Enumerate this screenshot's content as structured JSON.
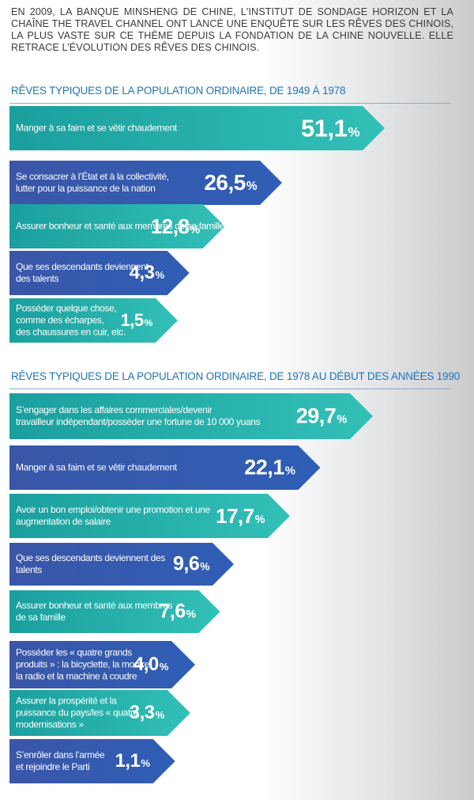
{
  "intro": "En 2009, la banque Minsheng de Chine, l'Institut de sondage Horizon et la chaîne The Travel Channel ont lancé une enquête sur les rêves des Chinois, la plus vaste sur ce thème depuis la fondation de la Chine nouvelle. Elle retrace l’évolution des rêves des Chinois.",
  "colors": {
    "teal": "#25b0aa",
    "blue": "#3458ad",
    "title_blue": "#1f73b7"
  },
  "chart_data": [
    {
      "type": "bar",
      "title": "Rêves typiques de la population ordinaire, de 1949 à 1978",
      "categories": [
        "Manger à sa faim et se vêtir chaudement",
        "Se consacrer à l’État et à la collectivité,\nlutter pour la puissance de la nation",
        "Assurer bonheur et santé aux membres de sa famille",
        "Que ses descendants deviennent\ndes talents",
        "Posséder quelque chose,\ncomme des écharpes,\ndes chaussures en cuir, etc."
      ],
      "values": [
        51.1,
        26.5,
        12.8,
        4.3,
        1.5
      ],
      "value_labels": [
        "51,1",
        "26,5",
        "12,8",
        "4,3",
        "1,5"
      ],
      "unit": "%",
      "bar_colors": [
        "teal",
        "blue",
        "teal",
        "blue",
        "teal"
      ]
    },
    {
      "type": "bar",
      "title": "Rêves typiques de la population ordinaire, de 1978 au début des années 1990",
      "categories": [
        "S’engager dans les affaires commerciales/devenir\ntravailleur indépendant/posséder une fortune de 10 000 yuans",
        "Manger à sa faim et se vêtir chaudement",
        "Avoir un bon emploi/obtenir une promotion et une\naugmentation de salaire",
        "Que ses descendants deviennent des\ntalents",
        "Assurer bonheur et santé aux membres\nde sa famille",
        "Posséder les « quatre grands\nproduits » : la bicyclette, la montre,\nla radio et la machine à coudre",
        "Assurer la prospérité et la\npuissance du pays/les « quatre\nmodernisations »",
        "S’enrôler dans l’armée\net rejoindre le Parti"
      ],
      "values": [
        29.7,
        22.1,
        17.7,
        9.6,
        7.6,
        4.0,
        3.3,
        1.1
      ],
      "value_labels": [
        "29,7",
        "22,1",
        "17,7",
        "9,6",
        "7,6",
        "4,0",
        "3,3",
        "1,1"
      ],
      "unit": "%",
      "bar_colors": [
        "teal",
        "blue",
        "teal",
        "blue",
        "teal",
        "blue",
        "teal",
        "blue"
      ]
    }
  ]
}
